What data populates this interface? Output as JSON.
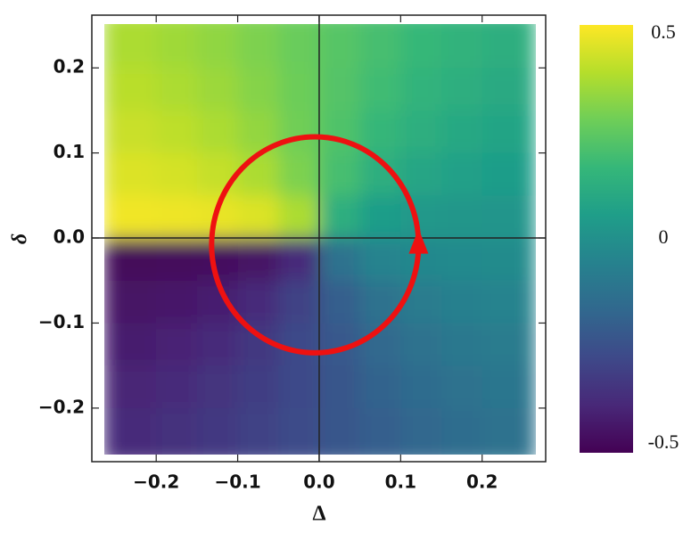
{
  "chart_data": {
    "type": "heatmap",
    "xlabel": "Δ",
    "ylabel": "δ",
    "x": [
      -0.225,
      -0.175,
      -0.125,
      -0.075,
      -0.025,
      0.025,
      0.075,
      0.125,
      0.175,
      0.225
    ],
    "y": [
      0.225,
      0.175,
      0.125,
      0.075,
      0.025,
      -0.025,
      -0.075,
      -0.125,
      -0.175,
      -0.225
    ],
    "z": [
      [
        0.375,
        0.355,
        0.331,
        0.301,
        0.268,
        0.232,
        0.199,
        0.169,
        0.145,
        0.125
      ],
      [
        0.395,
        0.375,
        0.349,
        0.314,
        0.273,
        0.227,
        0.186,
        0.151,
        0.125,
        0.105
      ],
      [
        0.419,
        0.401,
        0.375,
        0.336,
        0.281,
        0.219,
        0.164,
        0.125,
        0.099,
        0.081
      ],
      [
        0.449,
        0.436,
        0.414,
        0.375,
        0.301,
        0.199,
        0.125,
        0.086,
        0.064,
        0.051
      ],
      [
        0.482,
        0.477,
        0.469,
        0.449,
        0.375,
        0.125,
        0.051,
        0.031,
        0.023,
        0.018
      ],
      [
        -0.482,
        -0.477,
        -0.469,
        -0.449,
        -0.375,
        -0.125,
        -0.051,
        -0.031,
        -0.023,
        -0.018
      ],
      [
        -0.449,
        -0.436,
        -0.414,
        -0.375,
        -0.301,
        -0.199,
        -0.125,
        -0.086,
        -0.064,
        -0.051
      ],
      [
        -0.419,
        -0.401,
        -0.375,
        -0.336,
        -0.281,
        -0.219,
        -0.164,
        -0.125,
        -0.099,
        -0.081
      ],
      [
        -0.395,
        -0.375,
        -0.349,
        -0.314,
        -0.273,
        -0.227,
        -0.186,
        -0.151,
        -0.125,
        -0.105
      ],
      [
        -0.375,
        -0.355,
        -0.331,
        -0.301,
        -0.268,
        -0.232,
        -0.199,
        -0.169,
        -0.145,
        -0.125
      ]
    ],
    "xlim": [
      -0.279,
      0.278
    ],
    "ylim": [
      -0.263,
      0.262
    ],
    "xticks": [
      {
        "value": -0.2,
        "label": "−0.2"
      },
      {
        "value": -0.1,
        "label": "−0.1"
      },
      {
        "value": 0,
        "label": "0.0"
      },
      0.1,
      0.2
    ],
    "yticks": [
      {
        "value": -0.2,
        "label": "−0.2"
      },
      {
        "value": -0.1,
        "label": "−0.1"
      },
      {
        "value": 0,
        "label": "0.0"
      },
      0.1,
      0.2
    ],
    "clim": [
      -0.5,
      0.5
    ],
    "cticks": [
      -0.5,
      0,
      0.5
    ],
    "colormap": [
      "#440154",
      "#482878",
      "#3e4989",
      "#31688e",
      "#26828e",
      "#1f9e89",
      "#35b779",
      "#6ece58",
      "#b5de2b",
      "#fde725"
    ],
    "circle": {
      "center": [
        -0.005,
        -0.008
      ],
      "radius": 0.127,
      "color": "#ee1111"
    }
  }
}
